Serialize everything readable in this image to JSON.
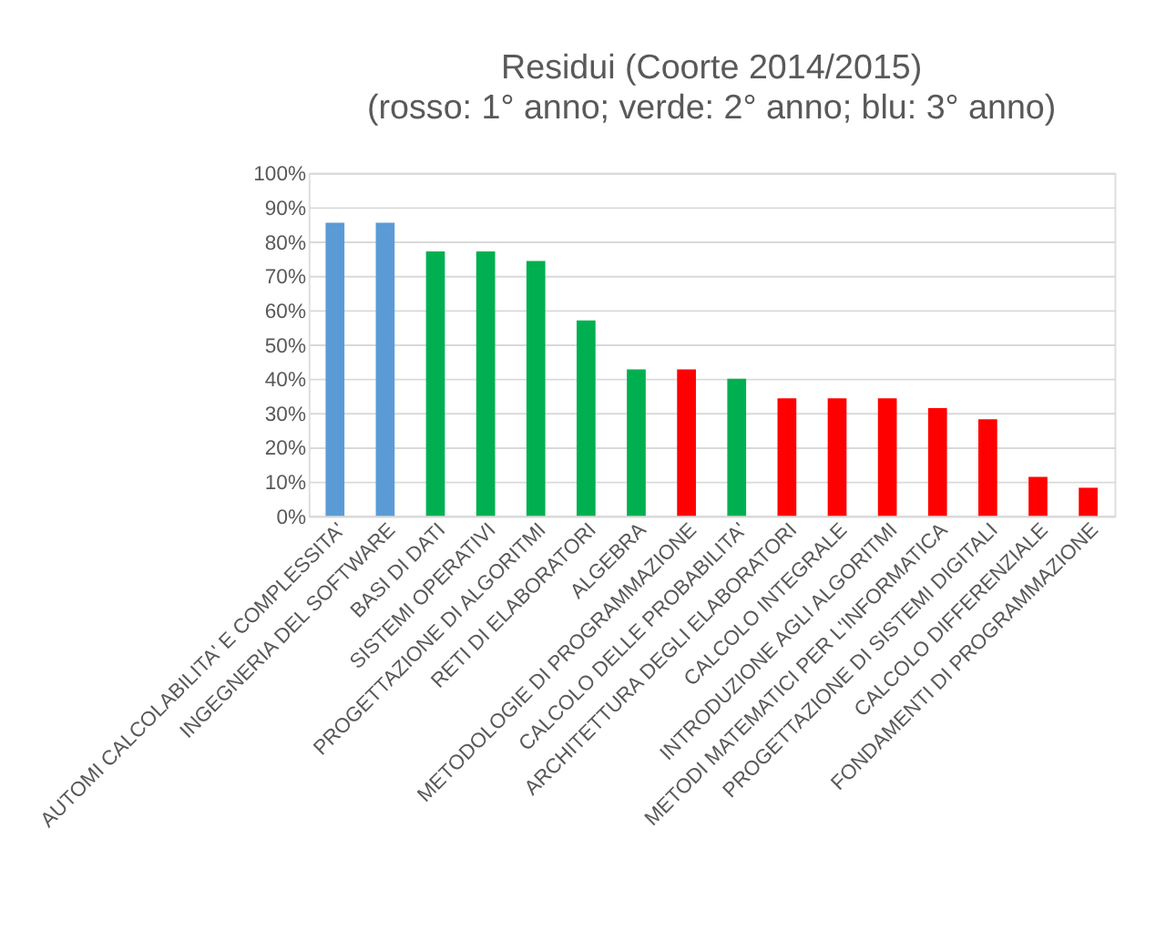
{
  "chart_data": {
    "type": "bar",
    "title": "Residui (Coorte 2014/2015)",
    "subtitle": "(rosso: 1° anno; verde: 2° anno; blu: 3° anno)",
    "categories": [
      "AUTOMI CALCOLABILITA' E COMPLESSITA'",
      "INGEGNERIA DEL SOFTWARE",
      "BASI DI DATI",
      "SISTEMI OPERATIVI",
      "PROGETTAZIONE DI ALGORITMI",
      "RETI DI ELABORATORI",
      "ALGEBRA",
      "METODOLOGIE DI PROGRAMMAZIONE",
      "CALCOLO DELLE PROBABILITA'",
      "ARCHITETTURA DEGLI ELABORATORI",
      "CALCOLO INTEGRALE",
      "INTRODUZIONE AGLI ALGORITMI",
      "METODI MATEMATICI PER L'INFORMATICA",
      "PROGETTAZIONE DI SISTEMI DIGITALI",
      "CALCOLO DIFFERENZIALE",
      "FONDAMENTI DI PROGRAMMAZIONE"
    ],
    "values": [
      85.5,
      85.5,
      77.1,
      77.1,
      74.3,
      57.0,
      42.7,
      42.7,
      40.0,
      34.3,
      34.3,
      34.3,
      31.4,
      28.2,
      11.4,
      8.2
    ],
    "colors": [
      "#5b9bd5",
      "#5b9bd5",
      "#00b050",
      "#00b050",
      "#00b050",
      "#00b050",
      "#00b050",
      "#ff0000",
      "#00b050",
      "#ff0000",
      "#ff0000",
      "#ff0000",
      "#ff0000",
      "#ff0000",
      "#ff0000",
      "#ff0000"
    ],
    "ylim": [
      0,
      100
    ],
    "yticks": [
      {
        "value": 0,
        "label": "0%"
      },
      {
        "value": 10,
        "label": "10%"
      },
      {
        "value": 20,
        "label": "20%"
      },
      {
        "value": 30,
        "label": "30%"
      },
      {
        "value": 40,
        "label": "40%"
      },
      {
        "value": 50,
        "label": "50%"
      },
      {
        "value": 60,
        "label": "60%"
      },
      {
        "value": 70,
        "label": "70%"
      },
      {
        "value": 80,
        "label": "80%"
      },
      {
        "value": 90,
        "label": "90%"
      },
      {
        "value": 100,
        "label": "100%"
      }
    ],
    "grid": "y"
  }
}
